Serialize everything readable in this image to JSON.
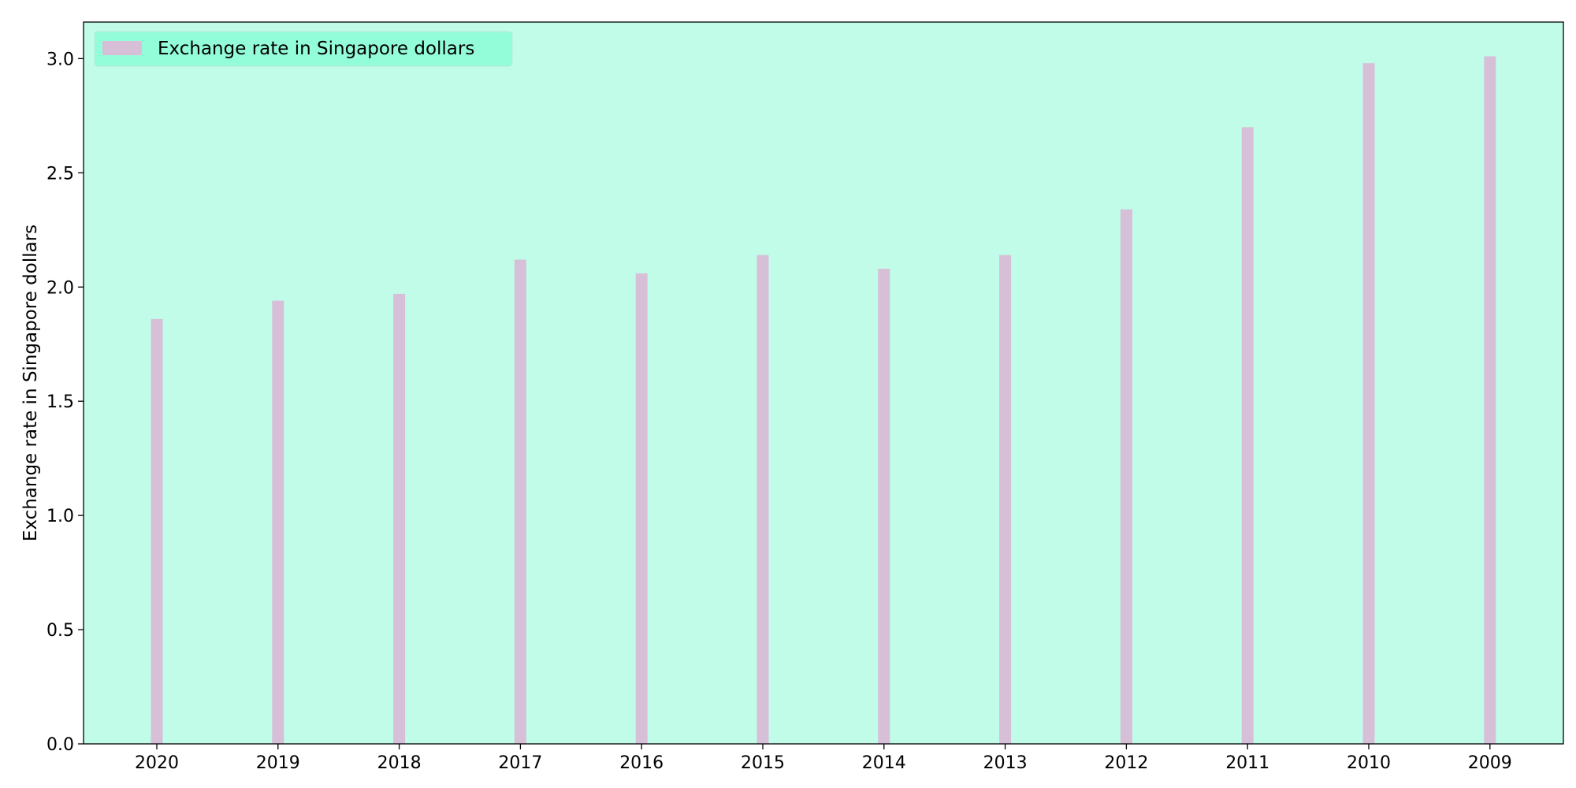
{
  "colors": {
    "plot_background": "#c0fce8",
    "bar": "#d8bfd8",
    "legend_background": "#93fcd8",
    "axis": "#000000"
  },
  "chart_data": {
    "type": "bar",
    "title": "",
    "xlabel": "",
    "ylabel": "Exchange rate in Singapore dollars",
    "categories": [
      "2020",
      "2019",
      "2018",
      "2017",
      "2016",
      "2015",
      "2014",
      "2013",
      "2012",
      "2011",
      "2010",
      "2009"
    ],
    "series": [
      {
        "name": "Exchange rate in Singapore dollars",
        "values": [
          1.86,
          1.94,
          1.97,
          2.12,
          2.06,
          2.14,
          2.08,
          2.14,
          2.34,
          2.7,
          2.98,
          3.01
        ]
      }
    ],
    "ylim": [
      0,
      3.16
    ],
    "yticks": [
      "0.0",
      "0.5",
      "1.0",
      "1.5",
      "2.0",
      "2.5",
      "3.0"
    ],
    "grid": false,
    "legend_position": "top-left"
  }
}
